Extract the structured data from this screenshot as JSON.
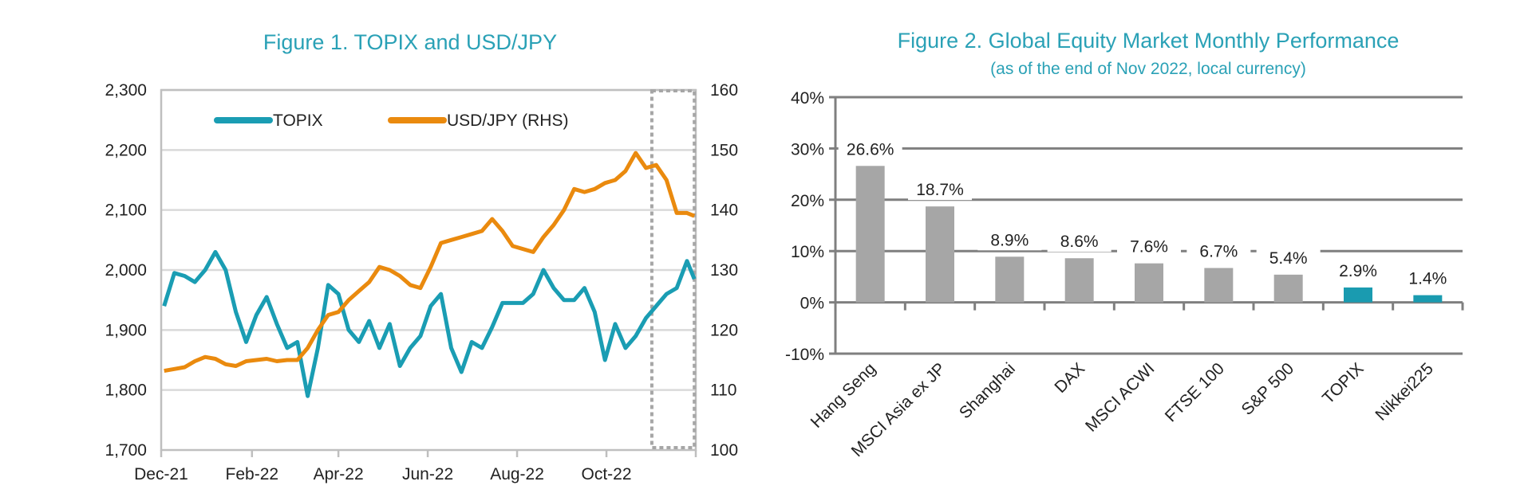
{
  "colors": {
    "topix": "#1a9db3",
    "usdjpy": "#ea8a0e",
    "bar_default": "#a6a6a6",
    "bar_highlight": "#1a9bb0",
    "title": "#2aa1b6",
    "grid": "#d9d9d9"
  },
  "chart_data": [
    {
      "type": "line",
      "title": "Figure 1. TOPIX and USD/JPY",
      "x_ticks": [
        "Dec-21",
        "Feb-22",
        "Apr-22",
        "Jun-22",
        "Aug-22",
        "Oct-22"
      ],
      "x_range": [
        "2021-12-01",
        "2022-12-01"
      ],
      "y_left": {
        "range": [
          1700,
          2300
        ],
        "ticks": [
          "1,700",
          "1,800",
          "1,900",
          "2,000",
          "2,100",
          "2,200",
          "2,300"
        ]
      },
      "y_right": {
        "range": [
          100,
          160
        ],
        "ticks": [
          "100",
          "110",
          "120",
          "130",
          "140",
          "150",
          "160"
        ]
      },
      "grid": true,
      "legend_placement": "top",
      "highlight_region": [
        "2022-11-01",
        "2022-11-30"
      ],
      "x": [
        "2021-12-03",
        "2021-12-10",
        "2021-12-17",
        "2021-12-24",
        "2021-12-31",
        "2022-01-07",
        "2022-01-14",
        "2022-01-21",
        "2022-01-28",
        "2022-02-04",
        "2022-02-11",
        "2022-02-18",
        "2022-02-25",
        "2022-03-04",
        "2022-03-11",
        "2022-03-18",
        "2022-03-25",
        "2022-04-01",
        "2022-04-08",
        "2022-04-15",
        "2022-04-22",
        "2022-04-29",
        "2022-05-06",
        "2022-05-13",
        "2022-05-20",
        "2022-05-27",
        "2022-06-03",
        "2022-06-10",
        "2022-06-17",
        "2022-06-24",
        "2022-07-01",
        "2022-07-08",
        "2022-07-15",
        "2022-07-22",
        "2022-07-29",
        "2022-08-05",
        "2022-08-12",
        "2022-08-19",
        "2022-08-26",
        "2022-09-02",
        "2022-09-09",
        "2022-09-16",
        "2022-09-23",
        "2022-09-30",
        "2022-10-07",
        "2022-10-14",
        "2022-10-21",
        "2022-10-28",
        "2022-11-04",
        "2022-11-11",
        "2022-11-18",
        "2022-11-25",
        "2022-11-30"
      ],
      "series": [
        {
          "name": "TOPIX",
          "axis": "left",
          "values": [
            1940,
            1995,
            1990,
            1980,
            2000,
            2030,
            2000,
            1930,
            1880,
            1925,
            1955,
            1910,
            1870,
            1880,
            1790,
            1870,
            1975,
            1960,
            1900,
            1880,
            1915,
            1870,
            1910,
            1840,
            1870,
            1890,
            1940,
            1960,
            1870,
            1830,
            1880,
            1870,
            1905,
            1945,
            1945,
            1945,
            1960,
            2000,
            1970,
            1950,
            1950,
            1970,
            1930,
            1850,
            1910,
            1870,
            1890,
            1920,
            1940,
            1960,
            1970,
            2015,
            1985
          ]
        },
        {
          "name": "USD/JPY (RHS)",
          "axis": "right",
          "values": [
            113.2,
            113.5,
            113.8,
            114.8,
            115.5,
            115.2,
            114.3,
            114.0,
            114.8,
            115.0,
            115.2,
            114.8,
            115.0,
            115.0,
            117.0,
            120.0,
            122.5,
            123.0,
            125.0,
            126.5,
            128.0,
            130.5,
            130.0,
            129.0,
            127.5,
            127.0,
            130.5,
            134.5,
            135.0,
            135.5,
            136.0,
            136.5,
            138.5,
            136.5,
            134.0,
            133.5,
            133.0,
            135.5,
            137.5,
            140.0,
            143.5,
            143.0,
            143.5,
            144.5,
            145.0,
            146.5,
            149.5,
            147.0,
            147.5,
            145.0,
            139.5,
            139.5,
            139.0
          ]
        }
      ]
    },
    {
      "type": "bar",
      "title": "Figure 2. Global Equity Market Monthly Performance",
      "subtitle": "(as of the end of Nov 2022, local currency)",
      "categories": [
        "Hang Seng",
        "MSCI Asia ex JP",
        "Shanghai",
        "DAX",
        "MSCI ACWI",
        "FTSE 100",
        "S&P 500",
        "TOPIX",
        "Nikkei225"
      ],
      "values": [
        26.6,
        18.7,
        8.9,
        8.6,
        7.6,
        6.7,
        5.4,
        2.9,
        1.4
      ],
      "data_labels": [
        "26.6%",
        "18.7%",
        "8.9%",
        "8.6%",
        "7.6%",
        "6.7%",
        "5.4%",
        "2.9%",
        "1.4%"
      ],
      "highlighted": [
        "TOPIX",
        "Nikkei225"
      ],
      "ylim": [
        -10,
        40
      ],
      "y_ticks": [
        "-10%",
        "0%",
        "10%",
        "20%",
        "30%",
        "40%"
      ],
      "grid": true
    }
  ]
}
